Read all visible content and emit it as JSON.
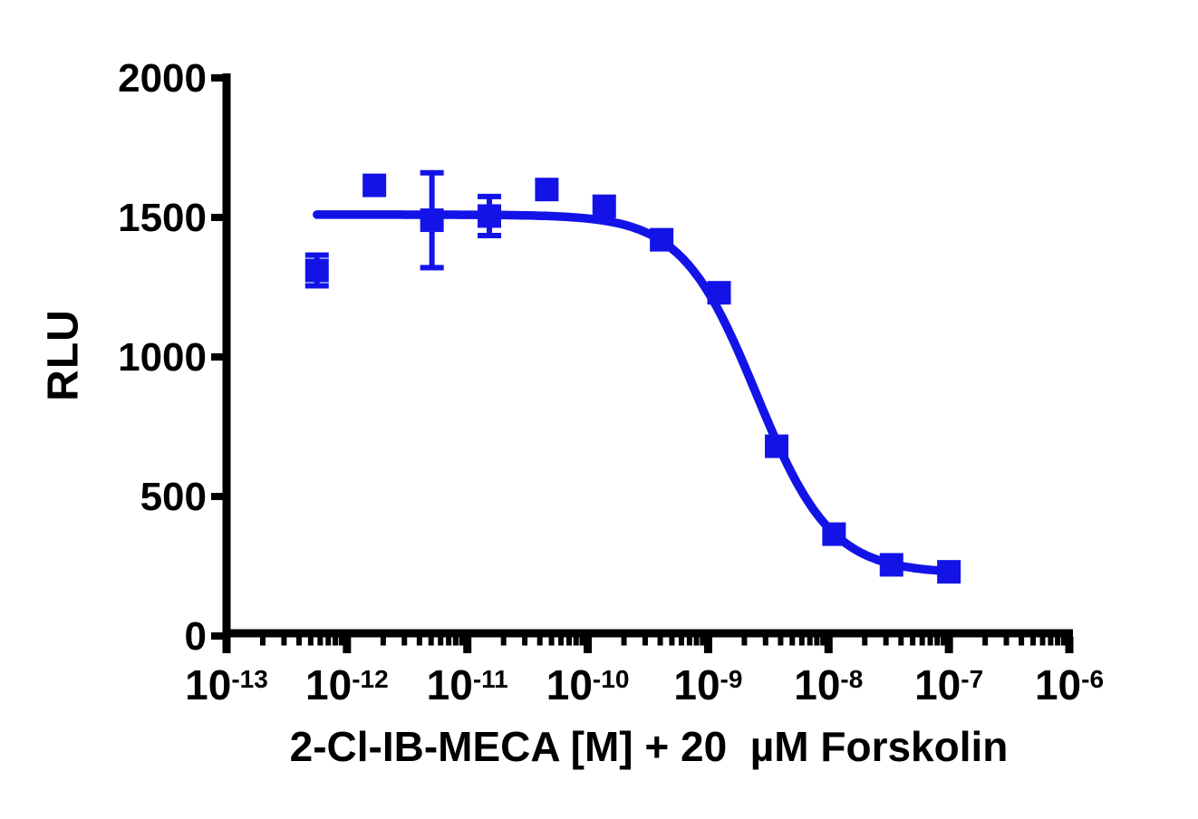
{
  "figure": {
    "ylabel": "RLU",
    "xlabel": "2-Cl-IB-MECA [M] + 20  µM Forskolin"
  },
  "chart_data": {
    "type": "scatter",
    "subtype": "inhibitory-dose-response-curve",
    "title": "",
    "xlabel": "2-Cl-IB-MECA [M] + 20  µM Forskolin",
    "ylabel": "RLU",
    "x_axis": {
      "scale": "log10",
      "range_log": [
        -13,
        -6
      ],
      "tick_base": "10",
      "tick_exponents": [
        "-13",
        "-12",
        "-11",
        "-10",
        "-9",
        "-8",
        "-7",
        "-6"
      ],
      "tick_logs": [
        -13,
        -12,
        -11,
        -10,
        -9,
        -8,
        -7,
        -6
      ],
      "minor_ticks": "log multiples 2-9 per decade",
      "grid": false
    },
    "y_axis": {
      "range": [
        0,
        2000
      ],
      "ticks": [
        2000,
        1500,
        1000,
        500,
        0
      ],
      "grid": false
    },
    "series": [
      {
        "name": "2-Cl-IB-MECA + 20 µM Forskolin",
        "marker": "square",
        "color": "#1313e8",
        "points": [
          {
            "conc_M": "5.6e-13",
            "log_conc": -12.249,
            "rlu": 1310,
            "sem": 55
          },
          {
            "conc_M": "1.7e-12",
            "log_conc": -11.772,
            "rlu": 1615,
            "sem": null
          },
          {
            "conc_M": "5.1e-12",
            "log_conc": -11.294,
            "rlu": 1490,
            "sem": 170
          },
          {
            "conc_M": "1.5e-11",
            "log_conc": -10.817,
            "rlu": 1505,
            "sem": 70
          },
          {
            "conc_M": "4.6e-11",
            "log_conc": -10.34,
            "rlu": 1600,
            "sem": null
          },
          {
            "conc_M": "1.4e-10",
            "log_conc": -9.863,
            "rlu": 1540,
            "sem": null
          },
          {
            "conc_M": "4.1e-10",
            "log_conc": -9.386,
            "rlu": 1420,
            "sem": null
          },
          {
            "conc_M": "1.2e-9",
            "log_conc": -8.909,
            "rlu": 1230,
            "sem": null
          },
          {
            "conc_M": "3.7e-9",
            "log_conc": -8.431,
            "rlu": 680,
            "sem": null
          },
          {
            "conc_M": "1.1e-8",
            "log_conc": -7.954,
            "rlu": 365,
            "sem": null
          },
          {
            "conc_M": "3.3e-8",
            "log_conc": -7.477,
            "rlu": 255,
            "sem": null
          },
          {
            "conc_M": "1.0e-7",
            "log_conc": -7.0,
            "rlu": 230,
            "sem": null
          }
        ]
      }
    ],
    "fit_curve": {
      "model": "four-parameter logistic (inhibition)",
      "top_rlu": 1510,
      "bottom_rlu": 225,
      "log_ic50": -8.6,
      "hill_slope": -1.4,
      "x_start_log": -12.249,
      "x_end_log": -7.0
    },
    "legend": {
      "shown": false
    }
  },
  "colors": {
    "series_blue": "#1313e8",
    "axis_black": "#000000",
    "background": "#ffffff"
  }
}
